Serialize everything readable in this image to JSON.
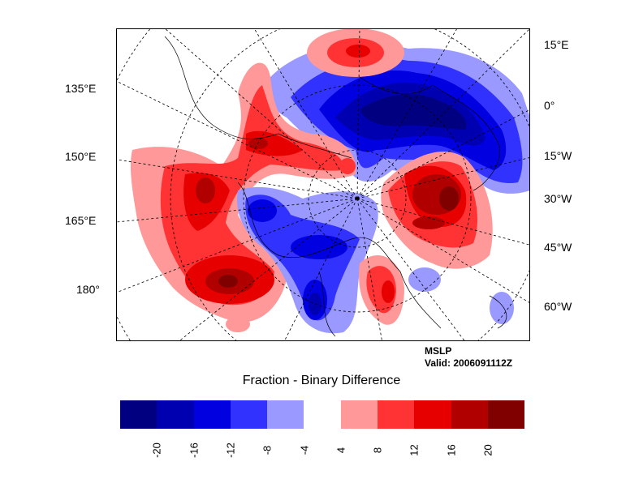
{
  "map": {
    "left_labels": [
      "135°E",
      "150°E",
      "165°E",
      "180°"
    ],
    "right_labels": [
      "15°E",
      "0°",
      "15°W",
      "30°W",
      "45°W",
      "60°W"
    ],
    "variable": "MSLP",
    "valid": "Valid: 2006091112Z",
    "projection": "polar stereographic",
    "grid": "dashed"
  },
  "title": "Fraction - Binary Difference",
  "colorbar": {
    "colors": [
      "#000080",
      "#0000b0",
      "#0000e0",
      "#3232ff",
      "#9999ff",
      "#ffffff",
      "#ff9999",
      "#ff3333",
      "#e60000",
      "#b00000",
      "#800000"
    ],
    "tick_labels": [
      "-20",
      "-16",
      "-12",
      "-8",
      "-4",
      "4",
      "8",
      "12",
      "16",
      "20"
    ]
  }
}
